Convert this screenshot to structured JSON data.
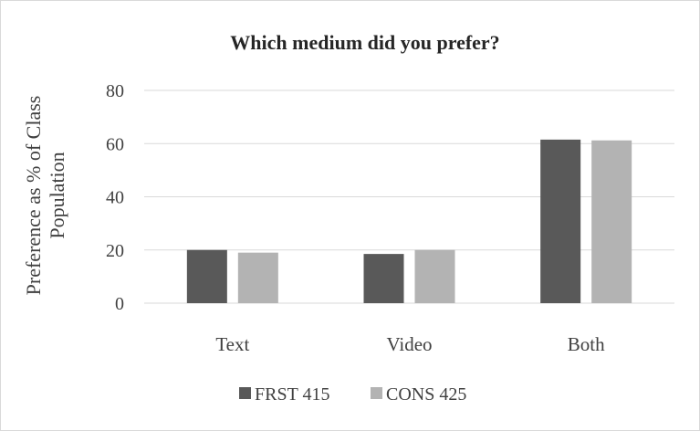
{
  "chart_data": {
    "type": "bar",
    "title": "Which medium did you prefer?",
    "ylabel_lines": [
      "Preference as % of Class",
      "Population"
    ],
    "xlabel": "",
    "categories": [
      "Text",
      "Video",
      "Both"
    ],
    "series": [
      {
        "name": "FRST 415",
        "values": [
          20,
          18.5,
          61.5
        ],
        "color": "#595959"
      },
      {
        "name": "CONS 425",
        "values": [
          19,
          20,
          61.2
        ],
        "color": "#b3b3b3"
      }
    ],
    "ylim": [
      0,
      80
    ],
    "yticks": [
      0,
      20,
      40,
      60,
      80
    ],
    "grid": true,
    "legend_position": "bottom"
  }
}
